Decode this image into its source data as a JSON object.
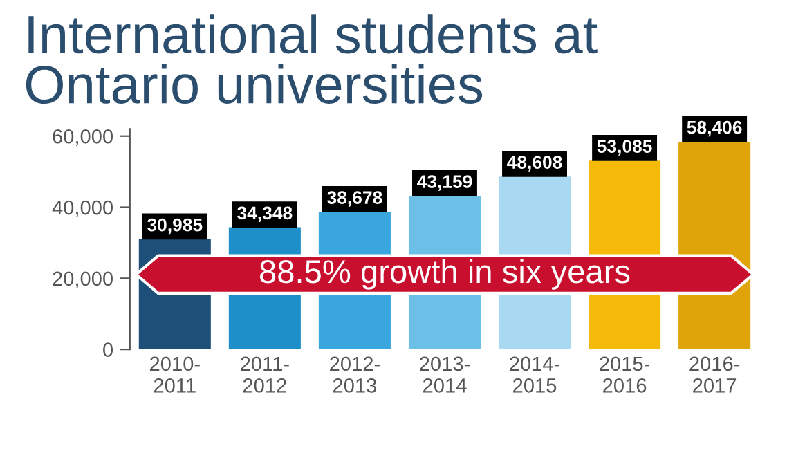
{
  "chart_data": {
    "type": "bar",
    "title": "International students at\nOntario universities",
    "categories": [
      "2010-\n2011",
      "2011-\n2012",
      "2012-\n2013",
      "2013-\n2014",
      "2014-\n2015",
      "2015-\n2016",
      "2016-\n2017"
    ],
    "values": [
      30985,
      34348,
      38678,
      43159,
      48608,
      53085,
      58406
    ],
    "colors": [
      "#1d4f78",
      "#1e8fc8",
      "#39a7de",
      "#6cc0e8",
      "#a9d9f2",
      "#f5b90a",
      "#dfa40a"
    ],
    "value_labels": [
      "30,985",
      "34,348",
      "38,678",
      "43,159",
      "48,608",
      "53,085",
      "58,406"
    ],
    "ylim": [
      0,
      62000
    ],
    "yticks": [
      0,
      {
        "value": 20000,
        "label": "20,000"
      },
      {
        "value": 40000,
        "label": "40,000"
      },
      {
        "value": 60000,
        "label": "60,000"
      }
    ],
    "annotations": [
      "88.5% growth in six years"
    ],
    "grid": false,
    "legend": false
  }
}
